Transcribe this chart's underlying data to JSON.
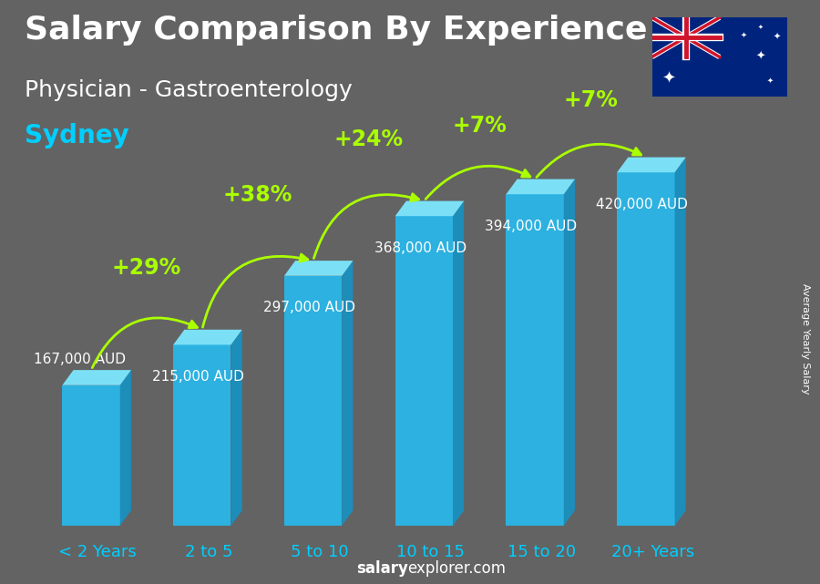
{
  "title_line1": "Salary Comparison By Experience",
  "title_line2": "Physician - Gastroenterology",
  "city": "Sydney",
  "categories": [
    "< 2 Years",
    "2 to 5",
    "5 to 10",
    "10 to 15",
    "15 to 20",
    "20+ Years"
  ],
  "values": [
    167000,
    215000,
    297000,
    368000,
    394000,
    420000
  ],
  "value_labels": [
    "167,000 AUD",
    "215,000 AUD",
    "297,000 AUD",
    "368,000 AUD",
    "394,000 AUD",
    "420,000 AUD"
  ],
  "pct_labels": [
    "+29%",
    "+38%",
    "+24%",
    "+7%",
    "+7%"
  ],
  "color_front": "#29b6e8",
  "color_top": "#7de8ff",
  "color_side": "#1a90c0",
  "background_color": "#636363",
  "pct_color": "#aaff00",
  "label_color": "#ffffff",
  "cat_color": "#00cfff",
  "ylabel": "Average Yearly Salary",
  "footer_bold": "salary",
  "footer_normal": "explorer.com",
  "ylim_max": 500000,
  "bar_width": 0.52,
  "dx3d": 0.1,
  "dy3d": 18000,
  "title_fontsize": 26,
  "subtitle_fontsize": 18,
  "city_fontsize": 20,
  "val_fontsize": 11,
  "pct_fontsize": 17,
  "cat_fontsize": 13,
  "ylabel_fontsize": 8,
  "footer_fontsize": 12
}
